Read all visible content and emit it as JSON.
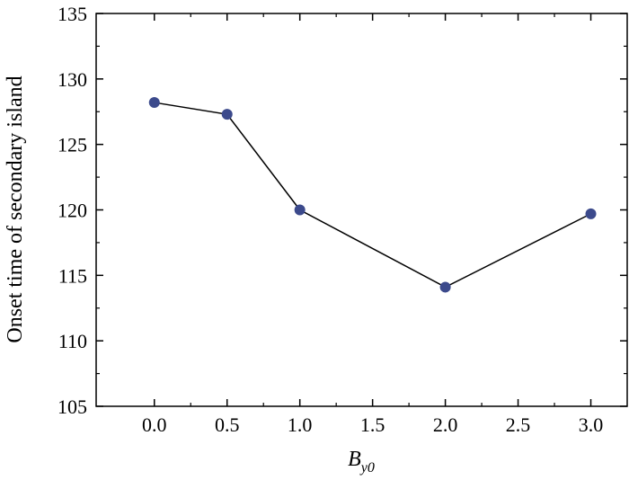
{
  "chart_data": {
    "type": "line",
    "title": "",
    "xlabel_main": "B",
    "xlabel_sub": "y0",
    "ylabel": "Onset time of secondary island",
    "xlim": [
      -0.4,
      3.25
    ],
    "ylim": [
      105,
      135
    ],
    "xticks": [
      "0.0",
      "0.5",
      "1.0",
      "1.5",
      "2.0",
      "2.5",
      "3.0"
    ],
    "xtick_values": [
      0,
      0.5,
      1.0,
      1.5,
      2.0,
      2.5,
      3.0
    ],
    "yticks": [
      "105",
      "110",
      "115",
      "120",
      "125",
      "130",
      "135"
    ],
    "ytick_values": [
      105,
      110,
      115,
      120,
      125,
      130,
      135
    ],
    "grid": false,
    "series": [
      {
        "x": [
          0.0,
          0.5,
          1.0,
          2.0,
          3.0
        ],
        "y": [
          128.2,
          127.3,
          120.0,
          114.1,
          119.7
        ],
        "marker_color": "#3c4a8c",
        "line_color": "#000000"
      }
    ]
  }
}
